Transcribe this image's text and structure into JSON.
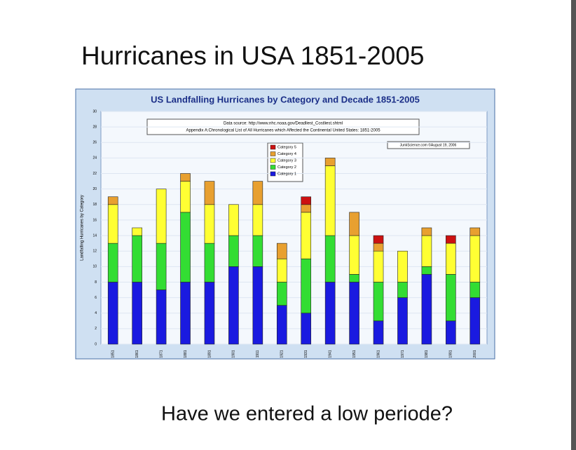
{
  "slide": {
    "title": "Hurricanes in USA 1851-2005",
    "footer": "Have we entered a low periode?"
  },
  "chart_data": {
    "type": "stacked_bar",
    "title": "US Landfalling Hurricanes by Category and Decade 1851-2005",
    "annotations": [
      "Data source: http://www.nhc.noaa.gov/Deadliest_Costliest.shtml",
      "Appendix A:Chronological List of All Hurricanes which Affected the Continental United States: 1851-2005",
      "JunkScience.com ©August 19, 2006"
    ],
    "y_label": "Landfalling Hurricanes by Category",
    "categories": [
      "1851",
      "1861",
      "1871",
      "1881",
      "1891",
      "1901",
      "1911",
      "1921",
      "1931",
      "1941",
      "1951",
      "1961",
      "1971",
      "1981",
      "1991",
      "2001"
    ],
    "series": [
      {
        "name": "Category 1",
        "color": "#1a1ae0",
        "values": [
          8,
          8,
          7,
          8,
          8,
          10,
          10,
          5,
          4,
          8,
          8,
          3,
          6,
          9,
          3,
          6
        ]
      },
      {
        "name": "Category 2",
        "color": "#33dd33",
        "values": [
          5,
          6,
          6,
          9,
          5,
          4,
          4,
          3,
          7,
          6,
          1,
          5,
          2,
          1,
          6,
          2
        ]
      },
      {
        "name": "Category 3",
        "color": "#ffff33",
        "values": [
          5,
          1,
          7,
          4,
          5,
          4,
          4,
          3,
          6,
          9,
          5,
          4,
          4,
          4,
          4,
          6
        ]
      },
      {
        "name": "Category 4",
        "color": "#e8a030",
        "values": [
          1,
          0,
          0,
          1,
          3,
          0,
          3,
          2,
          1,
          1,
          3,
          1,
          0,
          1,
          0,
          1
        ]
      },
      {
        "name": "Category 5",
        "color": "#cc1111",
        "values": [
          0,
          0,
          0,
          0,
          0,
          0,
          0,
          0,
          1,
          0,
          0,
          1,
          0,
          0,
          1,
          0
        ]
      }
    ],
    "ylim": [
      0,
      30
    ],
    "yticks": [
      0,
      2,
      4,
      6,
      8,
      10,
      12,
      14,
      16,
      18,
      20,
      22,
      24,
      26,
      28,
      30
    ],
    "grid": true
  }
}
